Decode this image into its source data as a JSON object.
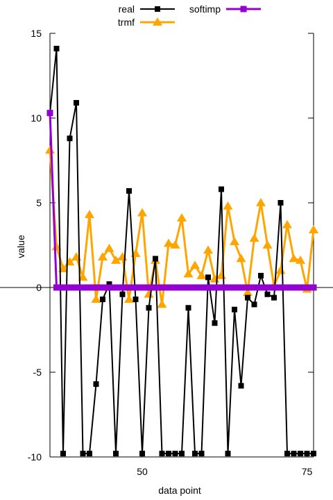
{
  "chart_data": {
    "type": "line",
    "xlabel": "data point",
    "ylabel": "value",
    "xlim": [
      36,
      76
    ],
    "ylim": [
      -10,
      15
    ],
    "xticks": [
      50,
      75
    ],
    "yticks": [
      -10,
      -5,
      0,
      5,
      10,
      15
    ],
    "zero_line": true,
    "legend_position": "top",
    "x": [
      36,
      37,
      38,
      39,
      40,
      41,
      42,
      43,
      44,
      45,
      46,
      47,
      48,
      49,
      50,
      51,
      52,
      53,
      54,
      55,
      56,
      57,
      58,
      59,
      60,
      61,
      62,
      63,
      64,
      65,
      66,
      67,
      68,
      69,
      70,
      71,
      72,
      73,
      74,
      75,
      76
    ],
    "series": [
      {
        "name": "real",
        "color": "#000000",
        "marker": "square",
        "values": [
          10.3,
          14.1,
          -9.8,
          8.8,
          10.9,
          -9.8,
          -9.8,
          -5.7,
          -0.7,
          0.2,
          -9.8,
          -0.4,
          5.7,
          -0.7,
          -9.8,
          -1.2,
          1.7,
          -9.8,
          -9.8,
          -9.8,
          -9.8,
          -1.2,
          -9.8,
          -9.8,
          0.6,
          -2.1,
          5.8,
          -9.8,
          -1.3,
          -5.8,
          -0.6,
          -1.0,
          0.7,
          -0.4,
          -0.6,
          5.0,
          -9.8,
          -9.8,
          -9.8,
          -9.8,
          -9.8
        ]
      },
      {
        "name": "trmf",
        "color": "#ffa500",
        "marker": "triangle",
        "values": [
          8.1,
          2.4,
          1.1,
          1.5,
          1.8,
          0.6,
          4.3,
          -0.7,
          1.8,
          2.3,
          1.6,
          1.8,
          -0.7,
          2.0,
          4.4,
          -0.4,
          1.6,
          -1.0,
          2.6,
          2.5,
          4.1,
          0.8,
          1.3,
          0.7,
          2.2,
          0.5,
          0.7,
          4.8,
          2.7,
          1.7,
          -0.3,
          2.9,
          5.0,
          2.5,
          0.1,
          1.0,
          3.7,
          1.7,
          1.6,
          -0.1,
          3.4
        ]
      },
      {
        "name": "softimp",
        "color": "#9400d3",
        "marker": "square",
        "values": [
          10.3,
          0.0,
          0.0,
          0.0,
          0.0,
          0.0,
          0.0,
          0.0,
          0.0,
          0.0,
          0.0,
          0.0,
          0.0,
          0.0,
          0.0,
          0.0,
          0.0,
          0.0,
          0.0,
          0.0,
          0.0,
          0.0,
          0.0,
          0.0,
          0.0,
          0.0,
          0.0,
          0.0,
          0.0,
          0.0,
          0.0,
          0.0,
          0.0,
          0.0,
          0.0,
          0.0,
          0.0,
          0.0,
          0.0,
          0.0,
          0.0
        ]
      }
    ]
  }
}
